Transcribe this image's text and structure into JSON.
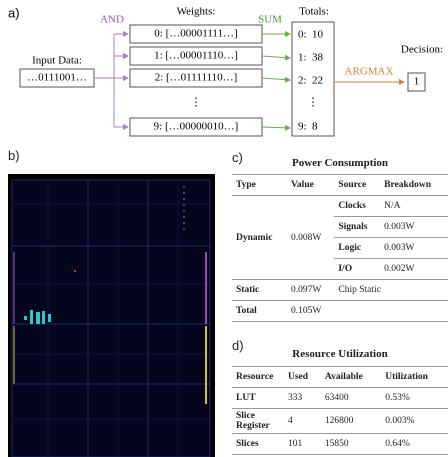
{
  "panel_a": {
    "label": "a)",
    "input_title": "Input Data:",
    "input_value": "…0111001…",
    "and_label": "AND",
    "weights_title": "Weights:",
    "weights": [
      "0: […00001111…]",
      "1: […00001110…]",
      "2: […01111110…]",
      "⋮",
      "9: […00000010…]"
    ],
    "sum_label": "SUM",
    "totals_title": "Totals:",
    "totals": [
      "0:  10",
      "1:  38",
      "2:  22",
      "⋮",
      "9:  8"
    ],
    "argmax_label": "ARGMAX",
    "decision_title": "Decision:",
    "decision_value": "1"
  },
  "panel_b": {
    "label": "b)"
  },
  "panel_c": {
    "label": "c)",
    "title": "Power Consumption",
    "header": [
      "Type",
      "Value",
      "Source",
      "Breakdown"
    ],
    "dynamic": {
      "type": "Dynamic",
      "value": "0.008W",
      "sources": [
        [
          "Clocks",
          "N/A"
        ],
        [
          "Signals",
          "0.003W"
        ],
        [
          "Logic",
          "0.003W"
        ],
        [
          "I/O",
          "0.002W"
        ]
      ]
    },
    "static": {
      "type": "Static",
      "value": "0.097W",
      "source": "Chip Static"
    },
    "total": {
      "type": "Total",
      "value": "0.105W"
    }
  },
  "panel_d": {
    "label": "d)",
    "title": "Resource Utilization",
    "header": [
      "Resource",
      "Used",
      "Available",
      "Utilization"
    ],
    "rows": [
      [
        "LUT",
        "333",
        "63400",
        "0.53%"
      ],
      [
        "Slice Register",
        "4",
        "126800",
        "0.003%"
      ],
      [
        "Slices",
        "101",
        "15850",
        "0.64%"
      ]
    ]
  }
}
